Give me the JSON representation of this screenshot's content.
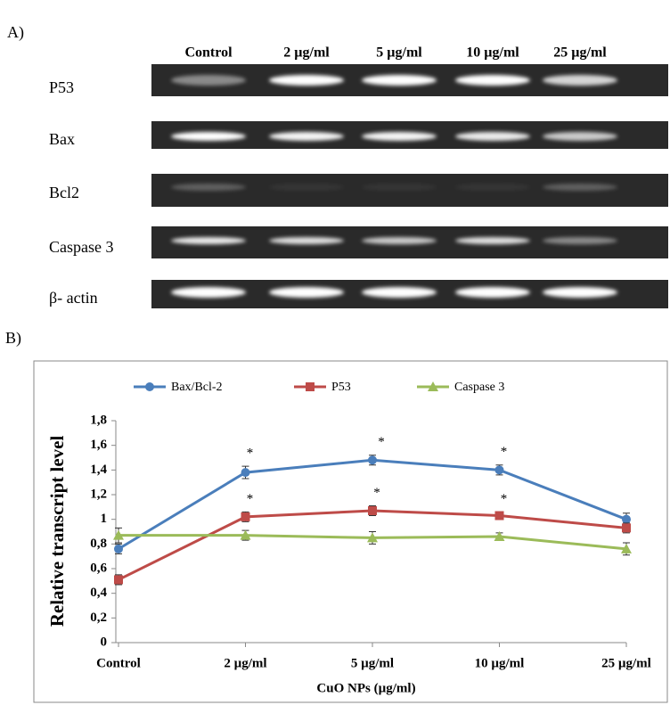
{
  "panel_a": {
    "label": "A)",
    "lanes": [
      "Control",
      "2 µg/ml",
      "5 µg/ml",
      "10 µg/ml",
      "25 µg/ml"
    ],
    "genes": [
      "P53",
      "Bax",
      "Bcl2",
      "Caspase 3",
      "β- actin"
    ]
  },
  "panel_b_label": "B)",
  "chart_data": {
    "type": "line",
    "x_label": "CuO NPs (µg/ml)",
    "y_label": "Relative transcript level",
    "categories": [
      "Control",
      "2 µg/ml",
      "5 µg/ml",
      "10 µg/ml",
      "25 µg/ml"
    ],
    "ylim": [
      0,
      1.8
    ],
    "yticks": [
      0,
      {
        "value": 0.2,
        "label": "0,2"
      },
      {
        "value": 0.4,
        "label": "0,4"
      },
      {
        "value": 0.6,
        "label": "0,6"
      },
      {
        "value": 0.8,
        "label": "0,8"
      },
      1,
      {
        "value": 1.2,
        "label": "1,2"
      },
      {
        "value": 1.4,
        "label": "1,4"
      },
      {
        "value": 1.6,
        "label": "1,6"
      },
      {
        "value": 1.8,
        "label": "1,8"
      }
    ],
    "legend": "top",
    "series": [
      {
        "name": "Bax/Bcl-2",
        "color": "#4a7ebb",
        "marker": "circle",
        "values": [
          0.76,
          1.38,
          1.48,
          1.4,
          1.0
        ],
        "errors": [
          0.04,
          0.05,
          0.04,
          0.04,
          0.05
        ],
        "significance": [
          null,
          "*",
          "*",
          "*",
          null
        ]
      },
      {
        "name": "P53",
        "color": "#be4b48",
        "marker": "square",
        "values": [
          0.51,
          1.02,
          1.07,
          1.03,
          0.93
        ],
        "errors": [
          0.04,
          0.04,
          0.04,
          0.03,
          0.04
        ],
        "significance": [
          null,
          "*",
          "*",
          "*",
          null
        ]
      },
      {
        "name": "Caspase 3",
        "color": "#9bbb59",
        "marker": "triangle",
        "values": [
          0.87,
          0.87,
          0.85,
          0.86,
          0.76
        ],
        "errors": [
          0.06,
          0.04,
          0.05,
          0.03,
          0.05
        ],
        "significance": [
          null,
          null,
          null,
          null,
          null
        ]
      }
    ]
  }
}
